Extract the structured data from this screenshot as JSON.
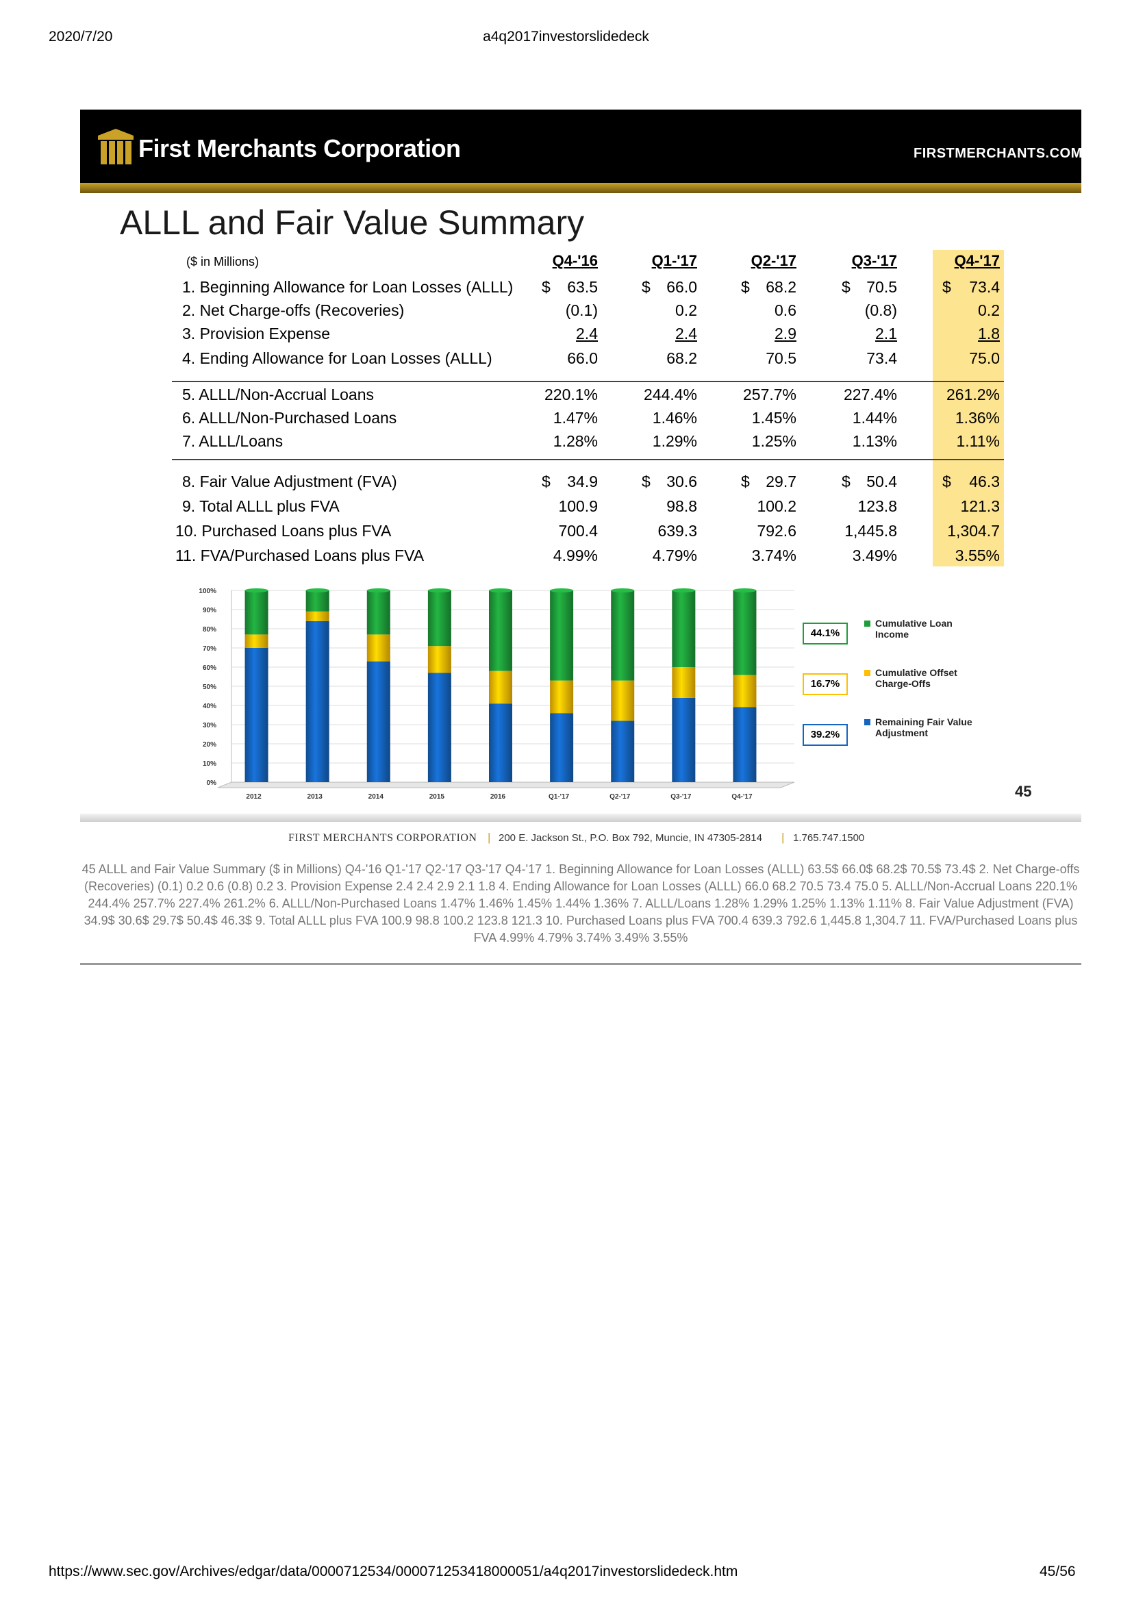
{
  "print_header": {
    "date": "2020/7/20",
    "doc_title": "a4q2017investorslidedeck"
  },
  "banner": {
    "company": "First Merchants Corporation",
    "site": "FIRSTMERCHANTS.COM"
  },
  "slide": {
    "title": "ALLL and Fair Value Summary",
    "units": "($ in Millions)",
    "columns": [
      "Q4-'16",
      "Q1-'17",
      "Q2-'17",
      "Q3-'17",
      "Q4-'17"
    ],
    "rows": [
      {
        "label": "1. Beginning Allowance for Loan Losses (ALLL)",
        "dollar": true,
        "values": [
          "63.5",
          "66.0",
          "68.2",
          "70.5",
          "73.4"
        ]
      },
      {
        "label": "2. Net Charge-offs (Recoveries)",
        "dollar": false,
        "values": [
          "(0.1)",
          "0.2",
          "0.6",
          "(0.8)",
          "0.2"
        ]
      },
      {
        "label": "3. Provision Expense",
        "dollar": false,
        "underline": true,
        "values": [
          "2.4",
          "2.4",
          "2.9",
          "2.1",
          "1.8"
        ]
      },
      {
        "label": "4. Ending Allowance for Loan Losses (ALLL)",
        "dollar": false,
        "values": [
          "66.0",
          "68.2",
          "70.5",
          "73.4",
          "75.0"
        ]
      },
      {
        "label": "5. ALLL/Non-Accrual Loans",
        "dollar": false,
        "values": [
          "220.1%",
          "244.4%",
          "257.7%",
          "227.4%",
          "261.2%"
        ]
      },
      {
        "label": "6. ALLL/Non-Purchased Loans",
        "dollar": false,
        "values": [
          "1.47%",
          "1.46%",
          "1.45%",
          "1.44%",
          "1.36%"
        ]
      },
      {
        "label": "7. ALLL/Loans",
        "dollar": false,
        "values": [
          "1.28%",
          "1.29%",
          "1.25%",
          "1.13%",
          "1.11%"
        ]
      },
      {
        "label": "8. Fair Value Adjustment (FVA)",
        "dollar": true,
        "values": [
          "34.9",
          "30.6",
          "29.7",
          "50.4",
          "46.3"
        ]
      },
      {
        "label": "9. Total ALLL plus FVA",
        "dollar": false,
        "values": [
          "100.9",
          "98.8",
          "100.2",
          "123.8",
          "121.3"
        ]
      },
      {
        "label": "10. Purchased Loans plus FVA",
        "dollar": false,
        "values": [
          "700.4",
          "639.3",
          "792.6",
          "1,445.8",
          "1,304.7"
        ]
      },
      {
        "label": "11. FVA/Purchased Loans plus FVA",
        "dollar": false,
        "values": [
          "4.99%",
          "4.79%",
          "3.74%",
          "3.49%",
          "3.55%"
        ]
      }
    ],
    "page_number": "45"
  },
  "chart_data": {
    "type": "bar",
    "stacked": true,
    "categories": [
      "2012",
      "2013",
      "2014",
      "2015",
      "2016",
      "Q1-'17",
      "Q2-'17",
      "Q3-'17",
      "Q4-'17"
    ],
    "ytick_labels": [
      "0%",
      "10%",
      "20%",
      "30%",
      "40%",
      "50%",
      "60%",
      "70%",
      "80%",
      "90%",
      "100%"
    ],
    "ylim": [
      0,
      100
    ],
    "series": [
      {
        "name": "Remaining Fair Value Adjustment",
        "color": "#1565c0",
        "values": [
          70,
          84,
          63,
          57,
          41,
          36,
          32,
          44,
          39.2
        ]
      },
      {
        "name": "Cumulative Offset Charge-Offs",
        "color": "#ffbf00",
        "values": [
          7,
          5,
          14,
          14,
          17,
          17,
          21,
          16,
          16.7
        ]
      },
      {
        "name": "Cumulative Loan Income",
        "color": "#1e9e3a",
        "values": [
          23,
          11,
          23,
          29,
          42,
          47,
          47,
          40,
          44.1
        ]
      }
    ],
    "annotations": {
      "loan_income": "44.1%",
      "offset_chargeoffs": "16.7%",
      "remaining_fva": "39.2%"
    },
    "legend": "right"
  },
  "footer": {
    "company": "FIRST MERCHANTS CORPORATION",
    "address": "200 E. Jackson St., P.O. Box 792, Muncie, IN 47305-2814",
    "phone": "1.765.747.1500"
  },
  "summary_text": "45  ALLL and Fair Value Summary  ($ in Millions) Q4-'16 Q1-'17 Q2-'17 Q3-'17 Q4-'17 1. Beginning Allowance for Loan Losses (ALLL) 63.5$ 66.0$ 68.2$ 70.5$ 73.4$ 2. Net Charge-offs (Recoveries) (0.1) 0.2 0.6 (0.8) 0.2 3. Provision Expense 2.4 2.4 2.9 2.1 1.8 4. Ending Allowance for Loan Losses (ALLL) 66.0 68.2 70.5 73.4 75.0  5. ALLL/Non-Accrual Loans 220.1% 244.4% 257.7% 227.4% 261.2% 6. ALLL/Non-Purchased Loans 1.47% 1.46% 1.45% 1.44% 1.36% 7. ALLL/Loans 1.28% 1.29% 1.25% 1.13% 1.11%  8. Fair Value Adjustment (FVA) 34.9$ 30.6$ 29.7$ 50.4$ 46.3$  9. Total ALLL plus FVA 100.9 98.8 100.2 123.8 121.3  10. Purchased Loans plus FVA 700.4 639.3 792.6 1,445.8 1,304.7  11. FVA/Purchased Loans plus FVA 4.99% 4.79% 3.74% 3.49% 3.55%",
  "print_footer": {
    "url": "https://www.sec.gov/Archives/edgar/data/0000712534/000071253418000051/a4q2017investorslidedeck.htm",
    "page": "45/56"
  }
}
